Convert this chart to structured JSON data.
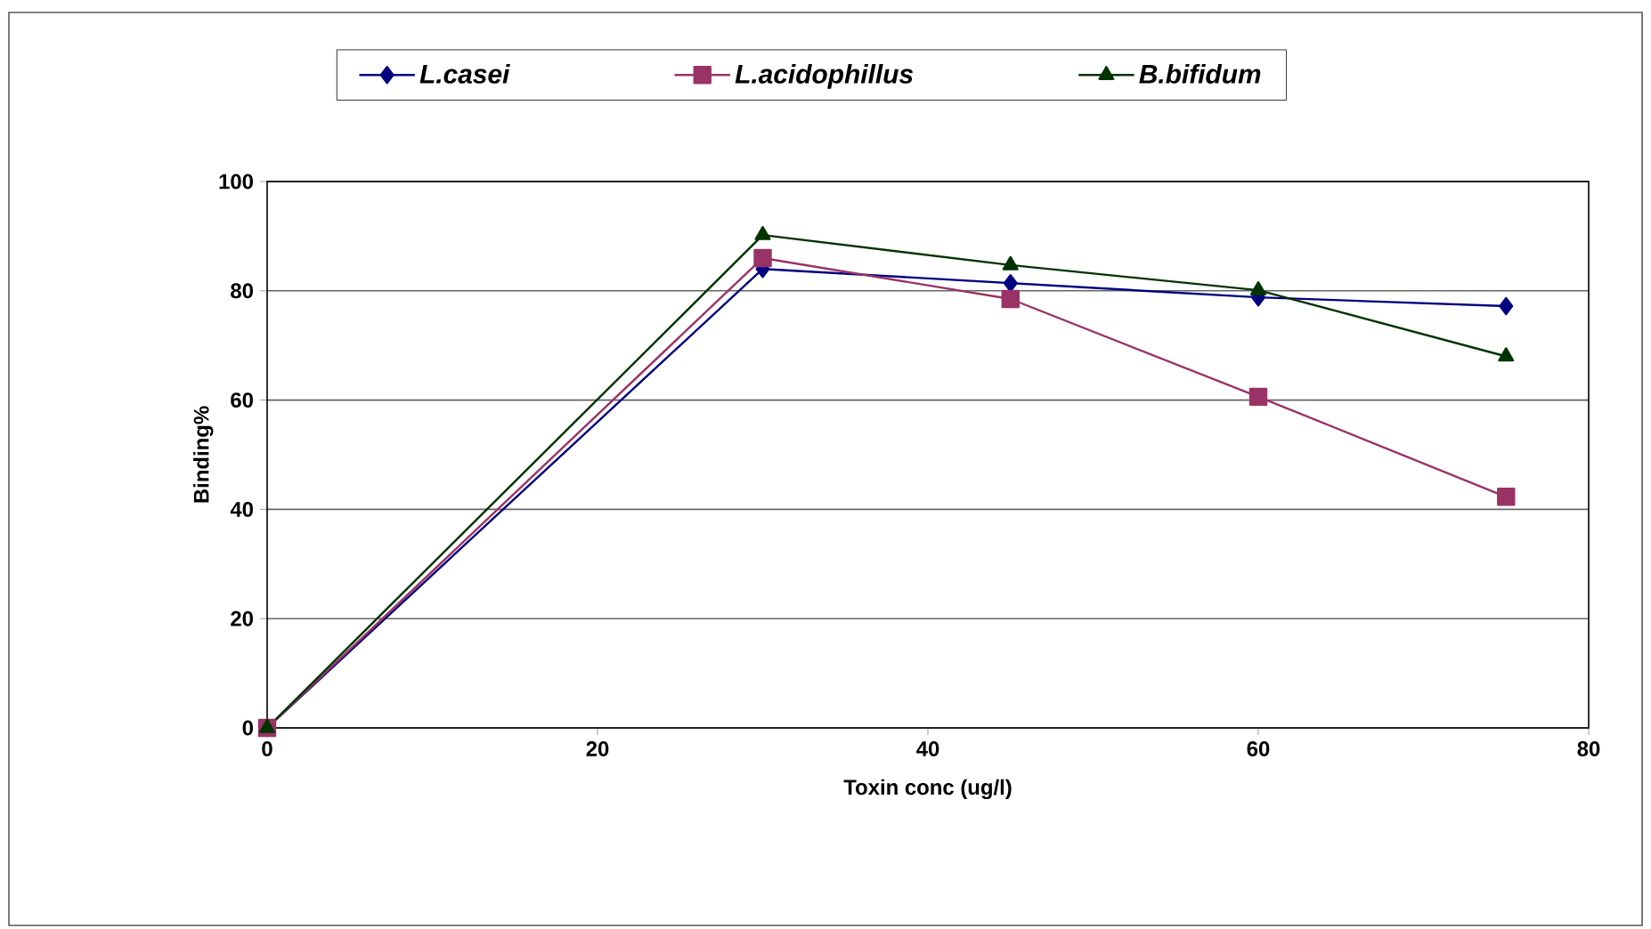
{
  "chart_data": {
    "type": "line",
    "xlabel": "Toxin conc (ug/l)",
    "ylabel": "Binding%",
    "x": [
      0,
      30,
      45,
      60,
      75
    ],
    "series": [
      {
        "name": "L.casei",
        "color": "#000080",
        "marker": "diamond",
        "values": [
          0,
          84,
          81.4,
          78.8,
          77.2
        ]
      },
      {
        "name": "L.acidophillus",
        "color": "#993366",
        "marker": "square",
        "values": [
          0,
          86,
          78.5,
          60.6,
          42.3
        ]
      },
      {
        "name": "B.bifidum",
        "color": "#003300",
        "marker": "triangle",
        "values": [
          0,
          90.2,
          84.7,
          80.1,
          68
        ]
      }
    ],
    "xlim": [
      0,
      80
    ],
    "xticks": [
      0,
      20,
      40,
      60,
      80
    ],
    "ylim": [
      0,
      100
    ],
    "yticks": [
      0,
      20,
      40,
      60,
      80,
      100
    ],
    "grid": "y",
    "legend": "top",
    "line_style": "solid"
  }
}
